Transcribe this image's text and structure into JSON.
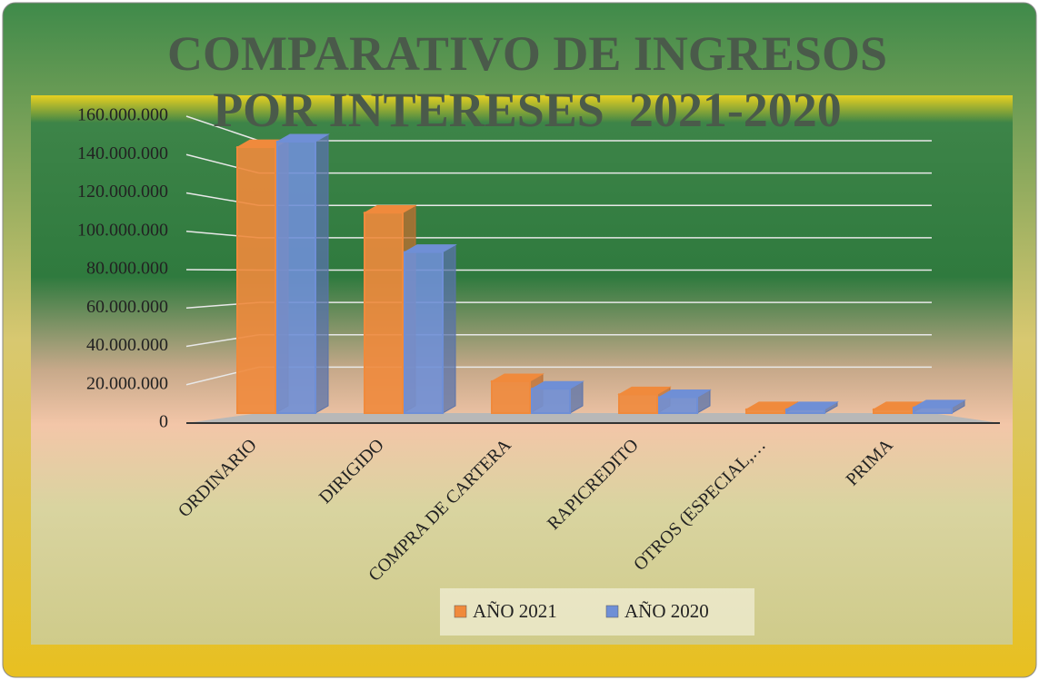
{
  "chart_data": {
    "type": "bar3d",
    "title": "COMPARATIVO DE INGRESOS POR INTERESES  2021-2020",
    "categories": [
      "ORDINARIO",
      "DIRIGIDO",
      "COMPRA DE CARTERA",
      "RAPICREDITO",
      "OTROS (ESPECIAL,…",
      "PRIMA"
    ],
    "series": [
      {
        "name": "AÑO 2021",
        "color": "#f08a3c",
        "values": [
          142000000,
          107000000,
          17000000,
          10000000,
          2000000,
          2000000
        ]
      },
      {
        "name": "AÑO 2020",
        "color": "#6f8fd6",
        "values": [
          145000000,
          86000000,
          13000000,
          8500000,
          2000000,
          3000000
        ]
      }
    ],
    "ylim": [
      0,
      160000000
    ],
    "yticks": [
      0,
      {
        "value": 20000000,
        "label": "20.000.000"
      },
      {
        "value": 40000000,
        "label": "40.000.000"
      },
      {
        "value": 60000000,
        "label": "60.000.000"
      },
      {
        "value": 80000000,
        "label": "80.000.000"
      },
      {
        "value": 100000000,
        "label": "100.000.000"
      },
      {
        "value": 120000000,
        "label": "120.000.000"
      },
      {
        "value": 140000000,
        "label": "140.000.000"
      },
      {
        "value": 160000000,
        "label": "160.000.000"
      }
    ],
    "grid": true,
    "legend": "bottom"
  }
}
